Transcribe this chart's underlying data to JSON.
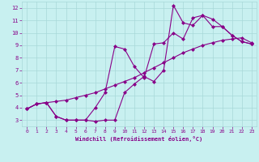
{
  "xlabel": "Windchill (Refroidissement éolien,°C)",
  "bg_color": "#c8f0f0",
  "grid_color": "#a8d8d8",
  "line_color": "#880088",
  "xlim": [
    -0.5,
    23.5
  ],
  "ylim": [
    2.5,
    12.5
  ],
  "xticks": [
    0,
    1,
    2,
    3,
    4,
    5,
    6,
    7,
    8,
    9,
    10,
    11,
    12,
    13,
    14,
    15,
    16,
    17,
    18,
    19,
    20,
    21,
    22,
    23
  ],
  "yticks": [
    3,
    4,
    5,
    6,
    7,
    8,
    9,
    10,
    11,
    12
  ],
  "line1_x": [
    0,
    1,
    2,
    3,
    4,
    5,
    6,
    7,
    8,
    9,
    10,
    11,
    12,
    13,
    14,
    15,
    16,
    17,
    18,
    19,
    20,
    21,
    22,
    23
  ],
  "line1_y": [
    3.9,
    4.3,
    4.4,
    3.3,
    3.0,
    3.0,
    3.0,
    2.9,
    3.0,
    3.0,
    5.2,
    5.9,
    6.5,
    6.1,
    7.0,
    12.2,
    10.8,
    10.6,
    11.4,
    11.1,
    10.5,
    9.8,
    9.3,
    9.1
  ],
  "line2_x": [
    0,
    1,
    2,
    3,
    4,
    5,
    6,
    7,
    8,
    9,
    10,
    11,
    12,
    13,
    14,
    15,
    16,
    17,
    18,
    19,
    20,
    21,
    22,
    23
  ],
  "line2_y": [
    3.9,
    4.3,
    4.4,
    4.5,
    4.6,
    4.8,
    5.0,
    5.2,
    5.5,
    5.8,
    6.1,
    6.4,
    6.8,
    7.2,
    7.6,
    8.0,
    8.4,
    8.7,
    9.0,
    9.2,
    9.4,
    9.5,
    9.6,
    9.2
  ],
  "line3_x": [
    0,
    1,
    2,
    3,
    4,
    5,
    6,
    7,
    8,
    9,
    10,
    11,
    12,
    13,
    14,
    15,
    16,
    17,
    18,
    19,
    20,
    21,
    22,
    23
  ],
  "line3_y": [
    3.9,
    4.3,
    4.4,
    3.3,
    3.0,
    3.0,
    3.0,
    4.0,
    5.2,
    8.9,
    8.7,
    7.3,
    6.4,
    9.1,
    9.2,
    10.0,
    9.5,
    11.2,
    11.4,
    10.5,
    10.5,
    9.8,
    9.3,
    9.1
  ]
}
